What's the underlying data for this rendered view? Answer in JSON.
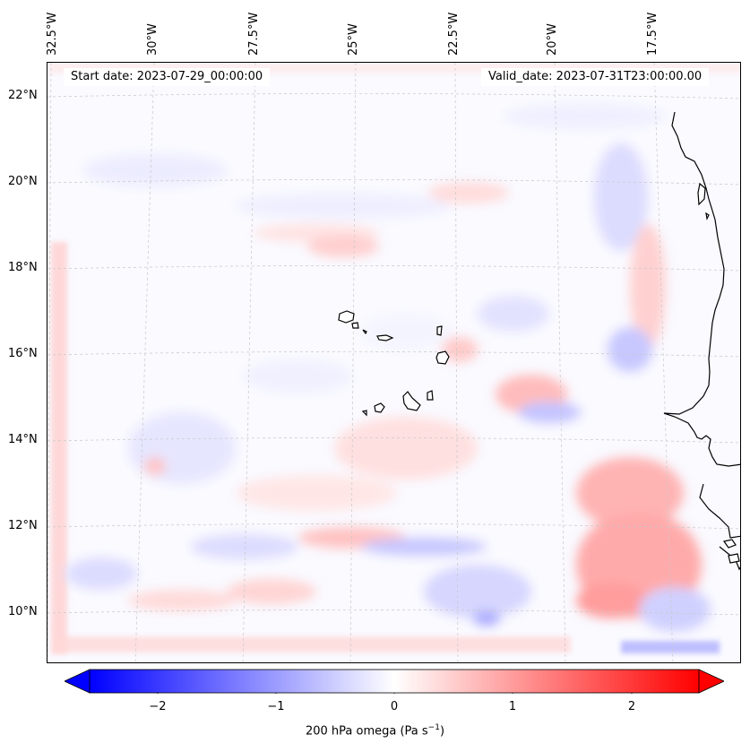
{
  "map": {
    "start_date": "Start date: 2023-07-29_00:00:00",
    "valid_date": "Valid_date: 2023-07-31T23:00:00.00",
    "lon_labels": [
      "32.5°W",
      "30°W",
      "27.5°W",
      "25°W",
      "22.5°W",
      "20°W",
      "17.5°W"
    ],
    "lat_labels": [
      "22°N",
      "20°N",
      "18°N",
      "16°N",
      "14°N",
      "12°N",
      "10°N"
    ],
    "colormap": "bwr",
    "colors": {
      "negative": "#0000ff",
      "zero": "#ffffff",
      "positive": "#ff0000",
      "coastline": "#000000"
    }
  },
  "colorbar": {
    "ticks": [
      "−2",
      "−1",
      "0",
      "1",
      "2"
    ],
    "label_text": "200 hPa omega (Pa s",
    "label_exp": "−1",
    "label_close": ")",
    "range": [
      -2.75,
      2.75
    ],
    "extend": "both"
  }
}
